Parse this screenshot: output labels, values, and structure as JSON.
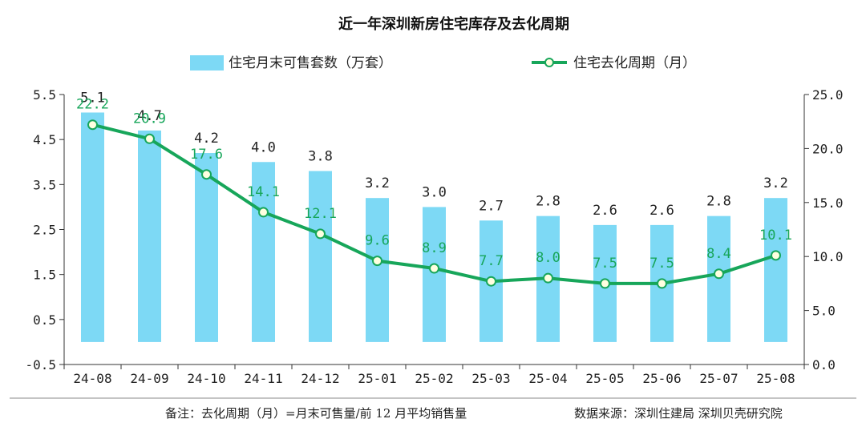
{
  "chart_data": {
    "type": "bar",
    "title": "近一年深圳新房住宅库存及去化周期",
    "categories": [
      "24-08",
      "24-09",
      "24-10",
      "24-11",
      "24-12",
      "25-01",
      "25-02",
      "25-03",
      "25-04",
      "25-05",
      "25-06",
      "25-07",
      "25-08"
    ],
    "series": [
      {
        "name": "住宅月末可售套数（万套）",
        "type": "bar",
        "axis": "left",
        "values": [
          5.1,
          4.7,
          4.2,
          4.0,
          3.8,
          3.2,
          3.0,
          2.7,
          2.8,
          2.6,
          2.6,
          2.8,
          3.2
        ],
        "color": "#7dd9f5"
      },
      {
        "name": "住宅去化周期（月）",
        "type": "line",
        "axis": "right",
        "values": [
          22.2,
          20.9,
          17.6,
          14.1,
          12.1,
          9.6,
          8.9,
          7.7,
          8.0,
          7.5,
          7.5,
          8.4,
          10.1
        ],
        "color": "#17a65a"
      }
    ],
    "y_left": {
      "ylim": [
        -0.5,
        5.5
      ],
      "ticks": [
        "-0.5",
        "0.5",
        "1.5",
        "2.5",
        "3.5",
        "4.5",
        "5.5"
      ]
    },
    "y_right": {
      "ylim": [
        0,
        25
      ],
      "ticks": [
        "0.0",
        "5.0",
        "10.0",
        "15.0",
        "20.0",
        "25.0"
      ]
    },
    "legend_position": "top",
    "grid": false
  },
  "footnote": {
    "note": "备注：去化周期（月）=月末可售量/前 12 月平均销售量",
    "source": "数据来源：深圳住建局 深圳贝壳研究院"
  }
}
